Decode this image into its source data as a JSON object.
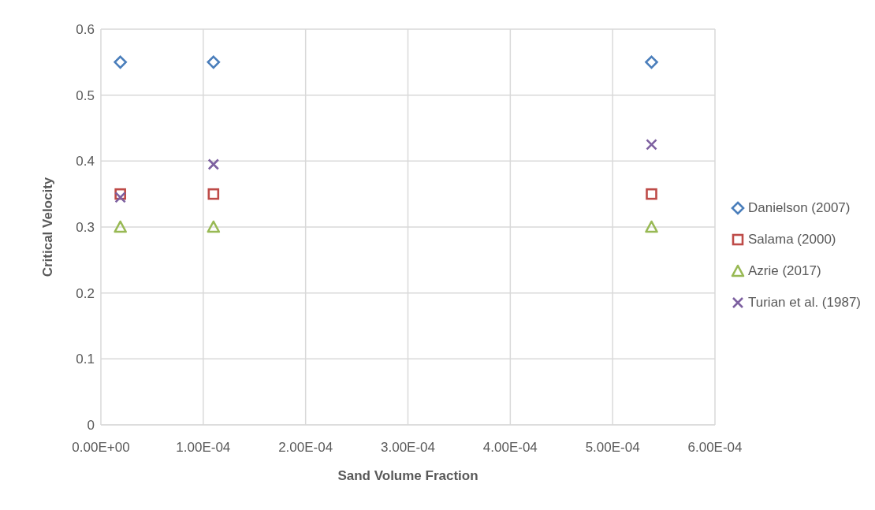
{
  "chart_data": {
    "type": "scatter",
    "xlabel": "Sand Volume Fraction",
    "ylabel": "Critical Velocity",
    "x": [
      1.9e-05,
      0.00011,
      0.000538
    ],
    "series": [
      {
        "name": "Danielson (2007)",
        "color": "#4a7ebb",
        "marker": "diamond",
        "values": [
          0.55,
          0.55,
          0.55
        ]
      },
      {
        "name": "Salama (2000)",
        "color": "#be4b48",
        "marker": "square",
        "values": [
          0.35,
          0.35,
          0.35
        ]
      },
      {
        "name": "Azrie (2017)",
        "color": "#98b954",
        "marker": "triangle",
        "values": [
          0.3,
          0.3,
          0.3
        ]
      },
      {
        "name": "Turian et al. (1987)",
        "color": "#7d60a0",
        "marker": "cross",
        "values": [
          0.345,
          0.395,
          0.425
        ]
      }
    ],
    "xlim": [
      0,
      0.0006
    ],
    "xticks": [
      {
        "value": 0,
        "label": "0.00E+00"
      },
      {
        "value": 0.0001,
        "label": "1.00E-04"
      },
      {
        "value": 0.0002,
        "label": "2.00E-04"
      },
      {
        "value": 0.0003,
        "label": "3.00E-04"
      },
      {
        "value": 0.0004,
        "label": "4.00E-04"
      },
      {
        "value": 0.0005,
        "label": "5.00E-04"
      },
      {
        "value": 0.0006,
        "label": "6.00E-04"
      }
    ],
    "ylim": [
      0,
      0.6
    ],
    "yticks": [
      0,
      0.1,
      0.2,
      0.3,
      0.4,
      0.5,
      0.6
    ],
    "grid": true,
    "legend": "right"
  }
}
